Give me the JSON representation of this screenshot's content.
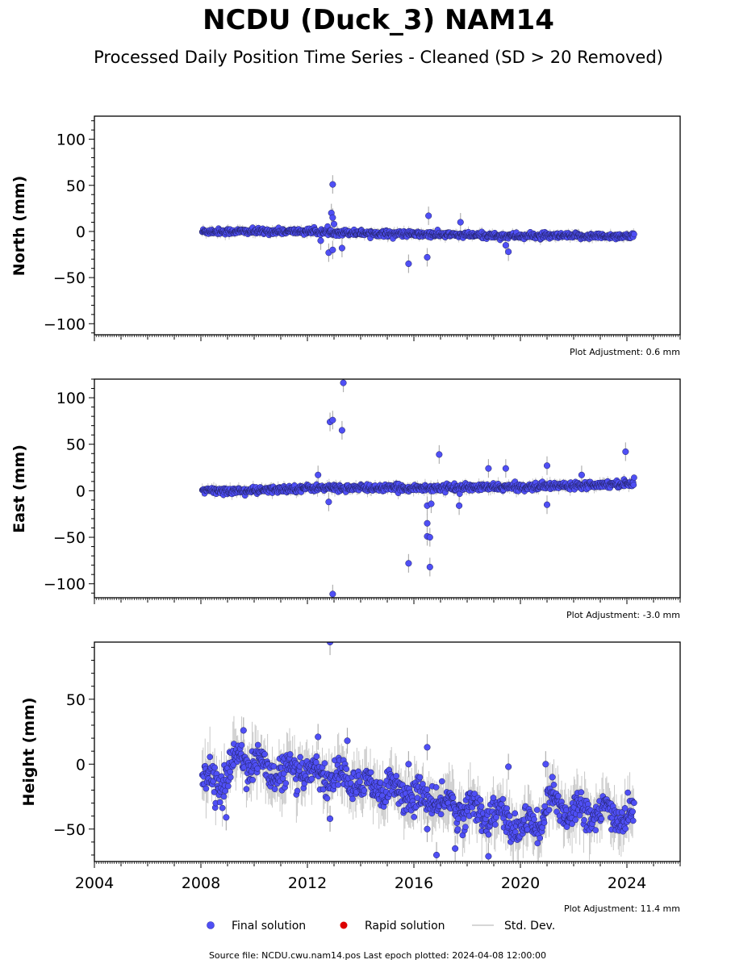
{
  "title": "NCDU (Duck_3) NAM14",
  "subtitle": "Processed Daily Position Time Series - Cleaned (SD > 20 Removed)",
  "legend": {
    "final": "Final solution",
    "rapid": "Rapid solution",
    "std": "Std. Dev."
  },
  "footer": "Source file: NCDU.cwu.nam14.pos  Last epoch plotted: 2024-04-08 12:00:00",
  "colors": {
    "final": "#4f4ff5",
    "rapid": "#dd0000",
    "std": "#c8c8c8"
  },
  "chart_data": [
    {
      "type": "scatter",
      "ylabel": "North (mm)",
      "adjustment": "Plot Adjustment: 0.6 mm",
      "xlim": [
        2004,
        2026
      ],
      "ylim": [
        -112,
        125
      ],
      "yticks": [
        -100,
        -50,
        0,
        50,
        100
      ],
      "trend": [
        [
          2008.05,
          0
        ],
        [
          2012,
          0
        ],
        [
          2016,
          -3
        ],
        [
          2020,
          -5
        ],
        [
          2024.27,
          -5
        ]
      ],
      "noise": 1.6,
      "outliers": [
        [
          2012.95,
          51
        ],
        [
          2012.9,
          20
        ],
        [
          2012.95,
          15
        ],
        [
          2012.8,
          -23
        ],
        [
          2012.95,
          -20
        ],
        [
          2013.3,
          -18
        ],
        [
          2015.8,
          -35
        ],
        [
          2016.5,
          -28
        ],
        [
          2016.55,
          17
        ],
        [
          2017.75,
          10
        ],
        [
          2019.45,
          -15
        ],
        [
          2019.55,
          -22
        ],
        [
          2012.5,
          -10
        ],
        [
          2013.0,
          8
        ]
      ]
    },
    {
      "type": "scatter",
      "ylabel": "East (mm)",
      "adjustment": "Plot Adjustment: -3.0 mm",
      "xlim": [
        2004,
        2026
      ],
      "ylim": [
        -115,
        120
      ],
      "yticks": [
        -100,
        -50,
        0,
        50,
        100
      ],
      "trend": [
        [
          2008.05,
          0
        ],
        [
          2010,
          0
        ],
        [
          2012,
          3
        ],
        [
          2016,
          3
        ],
        [
          2020,
          4
        ],
        [
          2022,
          6
        ],
        [
          2024.27,
          8
        ]
      ],
      "noise": 1.8,
      "outliers": [
        [
          2012.85,
          74
        ],
        [
          2012.95,
          76
        ],
        [
          2013.3,
          65
        ],
        [
          2013.35,
          116
        ],
        [
          2012.95,
          -111
        ],
        [
          2012.4,
          17
        ],
        [
          2012.8,
          -12
        ],
        [
          2015.8,
          -78
        ],
        [
          2016.5,
          -35
        ],
        [
          2016.5,
          -49
        ],
        [
          2016.6,
          -50
        ],
        [
          2016.6,
          -82
        ],
        [
          2016.5,
          -16
        ],
        [
          2016.65,
          -14
        ],
        [
          2016.95,
          39
        ],
        [
          2017.7,
          -16
        ],
        [
          2018.8,
          24
        ],
        [
          2019.45,
          24
        ],
        [
          2021.0,
          27
        ],
        [
          2021.0,
          -15
        ],
        [
          2023.95,
          42
        ],
        [
          2022.3,
          17
        ]
      ]
    },
    {
      "type": "scatter",
      "ylabel": "Height (mm)",
      "adjustment": "Plot Adjustment: 11.4 mm",
      "xlim": [
        2004,
        2026
      ],
      "ylim": [
        -75,
        94
      ],
      "yticks": [
        -50,
        0,
        50
      ],
      "trend": [
        [
          2008.05,
          -10
        ],
        [
          2008.8,
          -15
        ],
        [
          2009.5,
          8
        ],
        [
          2010,
          0
        ],
        [
          2011,
          -8
        ],
        [
          2012,
          -5
        ],
        [
          2013,
          -10
        ],
        [
          2014,
          -15
        ],
        [
          2015,
          -18
        ],
        [
          2016,
          -25
        ],
        [
          2017,
          -30
        ],
        [
          2018,
          -35
        ],
        [
          2019,
          -38
        ],
        [
          2020,
          -50
        ],
        [
          2020.8,
          -45
        ],
        [
          2021,
          -30
        ],
        [
          2022,
          -35
        ],
        [
          2023,
          -38
        ],
        [
          2024.27,
          -40
        ]
      ],
      "noise": 6,
      "outliers": [
        [
          2012.85,
          94
        ],
        [
          2013.5,
          18
        ],
        [
          2012.4,
          21
        ],
        [
          2009.6,
          26
        ],
        [
          2008.95,
          -41
        ],
        [
          2012.85,
          -42
        ],
        [
          2016.5,
          13
        ],
        [
          2016.5,
          -50
        ],
        [
          2016.85,
          -70
        ],
        [
          2017.55,
          -65
        ],
        [
          2018.8,
          -71
        ],
        [
          2019.55,
          -2
        ],
        [
          2020.95,
          0
        ],
        [
          2021.2,
          -10
        ],
        [
          2015.8,
          0
        ]
      ]
    }
  ],
  "xticks": [
    2004,
    2008,
    2012,
    2016,
    2020,
    2024
  ]
}
